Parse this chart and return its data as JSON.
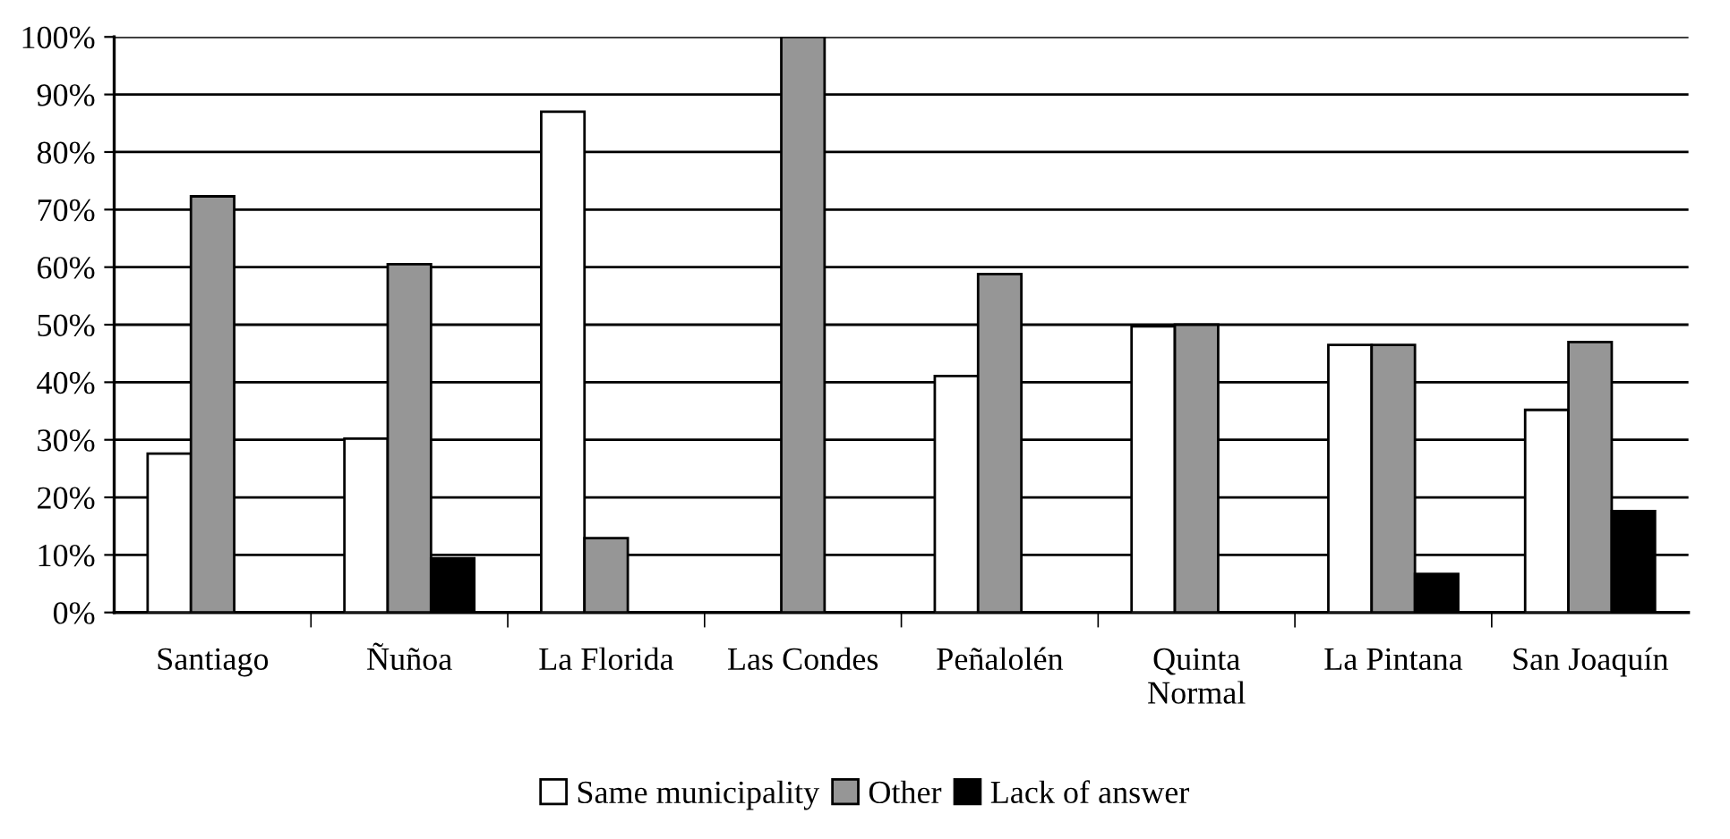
{
  "chart_data": {
    "type": "bar",
    "categories": [
      "Santiago",
      "Ñuñoa",
      "La Florida",
      "Las Condes",
      "Peñalolén",
      "Quinta Normal",
      "La Pintana",
      "San Joaquín"
    ],
    "series": [
      {
        "name": "Same municipality",
        "color": "#ffffff",
        "values": [
          27.6,
          30.2,
          87.0,
          null,
          41.1,
          49.7,
          46.5,
          35.2
        ]
      },
      {
        "name": "Other",
        "color": "#969696",
        "values": [
          72.3,
          60.5,
          12.9,
          100,
          58.8,
          50.0,
          46.5,
          47.0
        ]
      },
      {
        "name": "Lack of answer",
        "color": "#000000",
        "values": [
          null,
          9.4,
          null,
          null,
          null,
          null,
          6.7,
          17.6
        ]
      }
    ],
    "ylim": [
      0,
      100
    ],
    "yticks": [
      {
        "value": 0,
        "label": "0%"
      },
      {
        "value": 10,
        "label": "10%"
      },
      {
        "value": 20,
        "label": "20%"
      },
      {
        "value": 30,
        "label": "30%"
      },
      {
        "value": 40,
        "label": "40%"
      },
      {
        "value": 50,
        "label": "50%"
      },
      {
        "value": 60,
        "label": "60%"
      },
      {
        "value": 70,
        "label": "70%"
      },
      {
        "value": 80,
        "label": "80%"
      },
      {
        "value": 90,
        "label": "90%"
      },
      {
        "value": 100,
        "label": "100%"
      }
    ],
    "grid": "y",
    "legend": "bottom"
  }
}
